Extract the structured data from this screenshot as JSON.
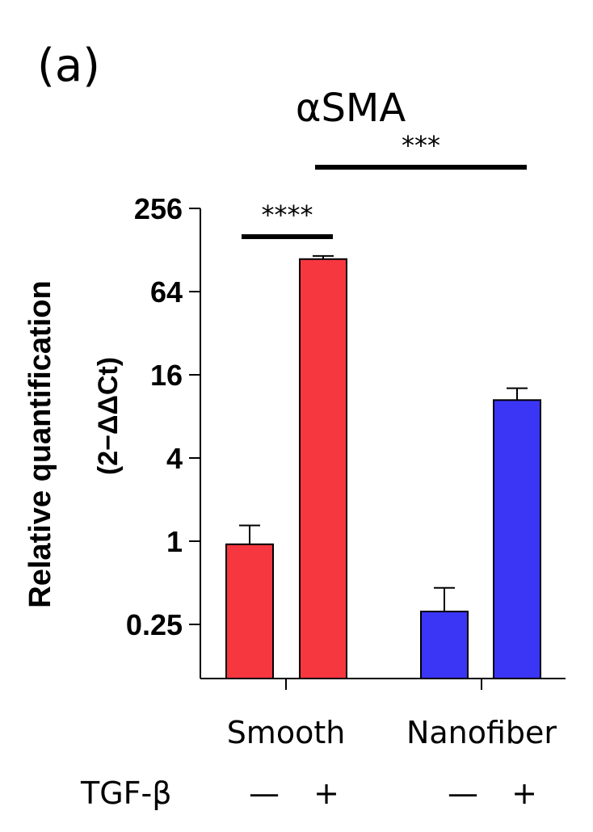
{
  "panel_label": "(a)",
  "group_labels": [
    "Smooth",
    "Nanofiber"
  ],
  "treatment": {
    "label": "TGF-β",
    "marks": [
      "—",
      "+",
      "—",
      "+"
    ]
  },
  "significance": [
    {
      "label": "****",
      "from": 0,
      "to": 1
    },
    {
      "label": "***",
      "from": 1,
      "to": 3
    }
  ],
  "ytick_labels": [
    "256",
    "64",
    "16",
    "4",
    "1",
    "0.25"
  ],
  "colors": {
    "smooth": "#f7373f",
    "nanofiber": "#3b35f5",
    "axis": "#000000"
  },
  "chart_data": {
    "type": "bar",
    "title": "αSMA",
    "ylabel": "Relative quantification",
    "ylabel_unit": "(2−ΔΔCt)",
    "y_scale": "log2",
    "yticks": [
      0.25,
      1,
      4,
      16,
      64,
      256
    ],
    "ylim": [
      0.1,
      256
    ],
    "grid": false,
    "bars": [
      {
        "group": "Smooth",
        "treatment": "—",
        "value": 0.95,
        "error": 0.35
      },
      {
        "group": "Smooth",
        "treatment": "+",
        "value": 110,
        "error": 6
      },
      {
        "group": "Nanofiber",
        "treatment": "—",
        "value": 0.31,
        "error": 0.15
      },
      {
        "group": "Nanofiber",
        "treatment": "+",
        "value": 10.5,
        "error": 2.3
      }
    ]
  }
}
